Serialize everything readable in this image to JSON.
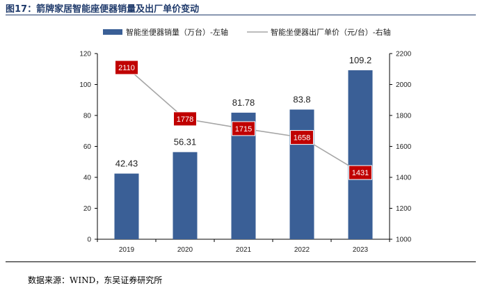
{
  "title": "图17：箭牌家居智能座便器销量及出厂单价变动",
  "source": "数据来源：WIND，东吴证券研究所",
  "chart_data": {
    "type": "bar+line",
    "categories": [
      "2019",
      "2020",
      "2021",
      "2022",
      "2023"
    ],
    "series": [
      {
        "name": "智能坐便器销量（万台）-左轴",
        "type": "bar",
        "axis": "left",
        "values": [
          42.43,
          56.31,
          81.78,
          83.8,
          109.2
        ],
        "labels": [
          "42.43",
          "56.31",
          "81.78",
          "83.8",
          "109.2"
        ],
        "color": "#3a5f96"
      },
      {
        "name": "智能坐便器出厂单价（元/台）-右轴",
        "type": "line",
        "axis": "right",
        "values": [
          2110,
          1778,
          1715,
          1658,
          1431
        ],
        "labels": [
          "2110",
          "1778",
          "1715",
          "1658",
          "1431"
        ],
        "color": "#a6a6a6",
        "label_bg": "#c00000"
      }
    ],
    "left_axis": {
      "range": [
        0,
        120
      ],
      "ticks": [
        "0",
        "20",
        "40",
        "60",
        "80",
        "100",
        "120"
      ]
    },
    "right_axis": {
      "range": [
        1000,
        2200
      ],
      "ticks": [
        "1000",
        "1200",
        "1400",
        "1600",
        "1800",
        "2000",
        "2200"
      ]
    },
    "legend": "top"
  }
}
